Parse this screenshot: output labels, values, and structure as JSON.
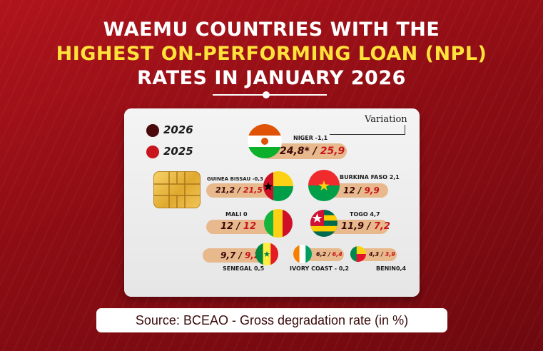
{
  "title": {
    "line1": "WAEMU COUNTRIES WITH THE",
    "line2": "HIGHEST ON-PERFORMING LOAN (NPL)",
    "line3": "RATES IN JANUARY 2026"
  },
  "legend": {
    "series_2026": "2026",
    "series_2025": "2025",
    "color_2026": "#4a0a0a",
    "color_2025": "#c8141c"
  },
  "variation_label": "Variation",
  "source": "Source: BCEAO - Gross degradation rate (in %)",
  "chart_data": {
    "type": "table",
    "title": "WAEMU COUNTRIES WITH THE HIGHEST ON-PERFORMING LOAN (NPL) RATES IN JANUARY 2026",
    "columns": [
      "2026",
      "2025",
      "Variation"
    ],
    "rows": [
      {
        "country": "NIGER",
        "value_2026": "24,8*",
        "value_2025": "25,9",
        "variation": "-1,1",
        "flag": "niger-flag"
      },
      {
        "country": "GUINEA BISSAU",
        "value_2026": "21,2",
        "value_2025": "21,5",
        "variation": "-0,3",
        "flag": "guinea-bissau-flag"
      },
      {
        "country": "BURKINA FASO",
        "value_2026": "12",
        "value_2025": "9,9",
        "variation": "2,1",
        "flag": "burkina-faso-flag"
      },
      {
        "country": "MALI",
        "value_2026": "12",
        "value_2025": "12",
        "variation": "0",
        "flag": "mali-flag"
      },
      {
        "country": "TOGO",
        "value_2026": "11,9",
        "value_2025": "7,2",
        "variation": "4,7",
        "flag": "togo-flag"
      },
      {
        "country": "SENEGAL",
        "value_2026": "9,7",
        "value_2025": "9,2",
        "variation": "0,5",
        "flag": "senegal-flag"
      },
      {
        "country": "IVORY COAST",
        "value_2026": "6,2",
        "value_2025": "6,4",
        "variation": "- 0,2",
        "flag": "ivory-coast-flag"
      },
      {
        "country": "BENIN",
        "value_2026": "4,3",
        "value_2025": "3,9",
        "variation": "0,4",
        "flag": "benin-flag"
      }
    ]
  }
}
